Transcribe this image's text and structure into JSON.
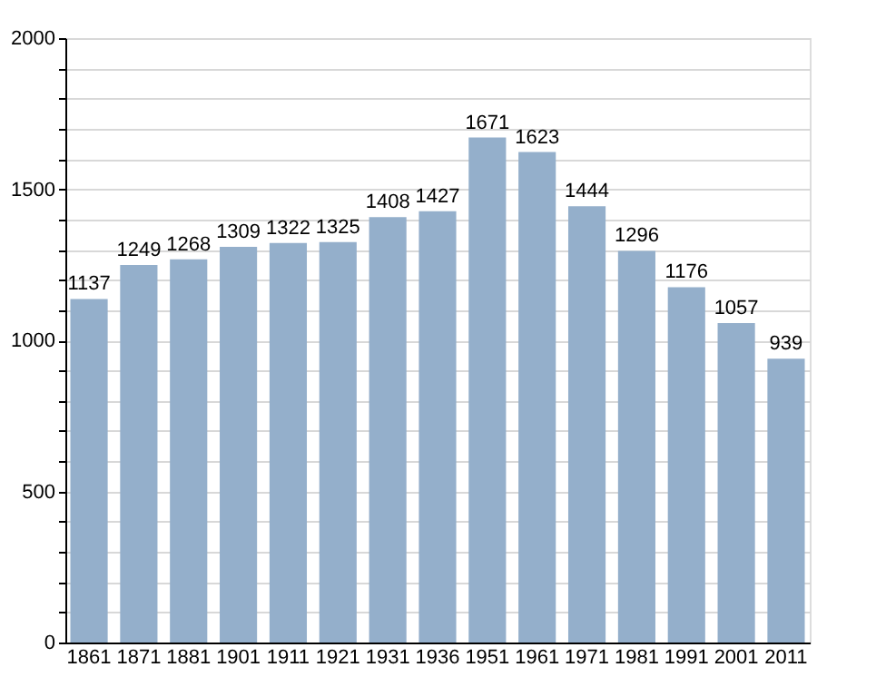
{
  "chart_data": {
    "type": "bar",
    "categories": [
      "1861",
      "1871",
      "1881",
      "1901",
      "1911",
      "1921",
      "1931",
      "1936",
      "1951",
      "1961",
      "1971",
      "1981",
      "1991",
      "2001",
      "2011"
    ],
    "values": [
      1137,
      1249,
      1268,
      1309,
      1322,
      1325,
      1408,
      1427,
      1671,
      1623,
      1444,
      1296,
      1176,
      1057,
      939
    ],
    "color": "#94afcb",
    "ylim": [
      0,
      2000
    ],
    "yticks": [
      0,
      {
        "value": 100,
        "label": null
      },
      {
        "value": 200,
        "label": null
      },
      {
        "value": 300,
        "label": null
      },
      {
        "value": 400,
        "label": null
      },
      500,
      {
        "value": 600,
        "label": null
      },
      {
        "value": 700,
        "label": null
      },
      {
        "value": 800,
        "label": null
      },
      {
        "value": 900,
        "label": null
      },
      1000,
      {
        "value": 1100,
        "label": null
      },
      {
        "value": 1200,
        "label": null
      },
      {
        "value": 1300,
        "label": null
      },
      {
        "value": 1400,
        "label": null
      },
      1500,
      {
        "value": 1600,
        "label": null
      },
      {
        "value": 1700,
        "label": null
      },
      {
        "value": 1800,
        "label": null
      },
      {
        "value": 1900,
        "label": null
      },
      2000
    ],
    "grid": true,
    "data_labels": true
  }
}
